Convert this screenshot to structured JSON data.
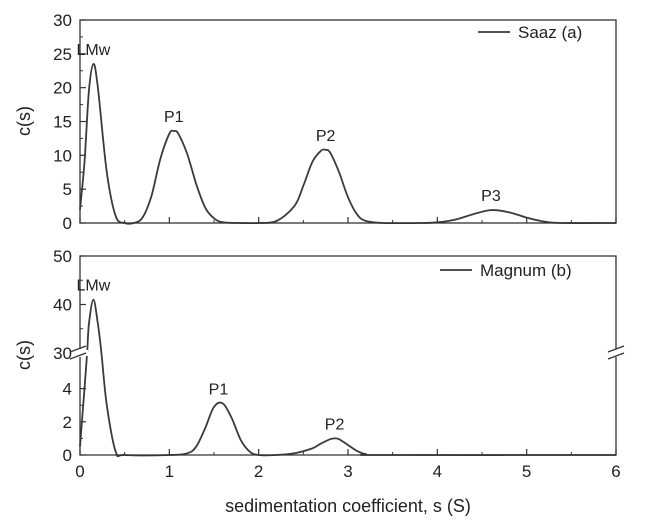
{
  "chart_data": [
    {
      "type": "line",
      "panel_label": "(a)",
      "xlabel": "sedimentation coefficient, s (S)",
      "ylabel": "c(s)",
      "xlim": [
        0,
        6
      ],
      "ylim": [
        0,
        30
      ],
      "x_ticks": [
        "0",
        "1",
        "2",
        "3",
        "4",
        "5",
        "6"
      ],
      "y_ticks": [
        "0",
        "5",
        "10",
        "15",
        "20",
        "25",
        "30"
      ],
      "legend": {
        "position": "top-right",
        "entries": [
          "Saaz (a)"
        ]
      },
      "grid": false,
      "series": [
        {
          "name": "Saaz (a)",
          "color": "#3a3a3a",
          "x": [
            0,
            0.05,
            0.1,
            0.15,
            0.2,
            0.3,
            0.4,
            0.5,
            0.6,
            0.7,
            0.8,
            0.9,
            1.0,
            1.05,
            1.1,
            1.2,
            1.3,
            1.4,
            1.5,
            1.6,
            1.8,
            2.0,
            2.2,
            2.4,
            2.5,
            2.6,
            2.7,
            2.75,
            2.8,
            2.9,
            3.0,
            3.1,
            3.2,
            3.4,
            3.8,
            4.0,
            4.2,
            4.4,
            4.6,
            4.8,
            5.0,
            5.2,
            5.4,
            6.0
          ],
          "y": [
            2.0,
            9.0,
            19.5,
            23.5,
            20.0,
            7.5,
            1.0,
            0.0,
            0.0,
            0.8,
            4.0,
            9.5,
            13.2,
            13.6,
            13.2,
            10.2,
            5.8,
            2.3,
            0.7,
            0.1,
            0.0,
            0.0,
            0.3,
            2.5,
            5.5,
            9.0,
            10.7,
            10.8,
            10.4,
            7.5,
            3.8,
            1.3,
            0.3,
            0.0,
            0.0,
            0.1,
            0.5,
            1.3,
            1.9,
            1.6,
            0.8,
            0.2,
            0.0,
            0.0
          ]
        }
      ],
      "annotations": [
        {
          "text": "LMw",
          "x": 0.15,
          "y": 23.5
        },
        {
          "text": "P1",
          "x": 1.05,
          "y": 13.6
        },
        {
          "text": "P2",
          "x": 2.75,
          "y": 10.8
        },
        {
          "text": "P3",
          "x": 4.6,
          "y": 1.9
        }
      ]
    },
    {
      "type": "line",
      "panel_label": "(b)",
      "xlabel": "sedimentation coefficient, s (S)",
      "ylabel": "c(s)",
      "xlim": [
        0,
        6
      ],
      "y_axis_break": {
        "lower_range": [
          0,
          5
        ],
        "upper_range": [
          30,
          50
        ]
      },
      "x_ticks": [
        "0",
        "1",
        "2",
        "3",
        "4",
        "5",
        "6"
      ],
      "y_ticks_lower": [
        "0",
        "2",
        "4"
      ],
      "y_ticks_upper": [
        "30",
        "40",
        "50"
      ],
      "legend": {
        "position": "top-right",
        "entries": [
          "Magnum (b)"
        ]
      },
      "grid": false,
      "series": [
        {
          "name": "Magnum (b)",
          "color": "#3a3a3a",
          "x": [
            0,
            0.05,
            0.08,
            0.1,
            0.15,
            0.2,
            0.24,
            0.3,
            0.4,
            0.5,
            1.0,
            1.2,
            1.3,
            1.4,
            1.5,
            1.6,
            1.7,
            1.8,
            1.9,
            2.0,
            2.2,
            2.4,
            2.6,
            2.7,
            2.8,
            2.85,
            2.9,
            3.0,
            3.1,
            3.2,
            3.4,
            6.0
          ],
          "y": [
            0.5,
            4.0,
            30.0,
            36.0,
            41.0,
            36.0,
            30.0,
            3.0,
            0.2,
            0.0,
            0.0,
            0.1,
            0.5,
            1.6,
            2.9,
            3.1,
            2.2,
            0.9,
            0.2,
            0.0,
            0.0,
            0.1,
            0.4,
            0.7,
            0.95,
            1.0,
            0.95,
            0.6,
            0.25,
            0.05,
            0.0,
            0.0
          ]
        }
      ],
      "annotations": [
        {
          "text": "LMw",
          "x": 0.15,
          "y": 41.0
        },
        {
          "text": "P1",
          "x": 1.55,
          "y": 3.1
        },
        {
          "text": "P2",
          "x": 2.85,
          "y": 1.0
        }
      ]
    }
  ]
}
